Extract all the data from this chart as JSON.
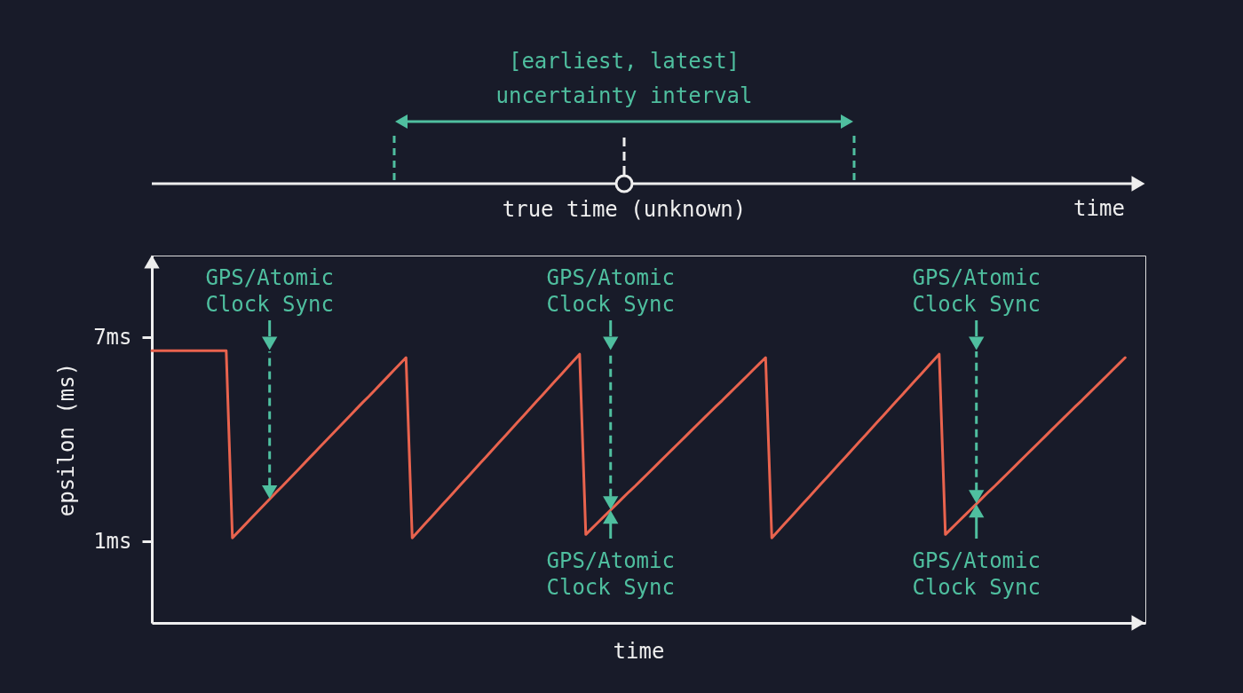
{
  "chart_data": {
    "type": "line",
    "xlabel": "time",
    "ylabel": "epsilon (ms)",
    "ylim": [
      -1.4,
      9.4
    ],
    "yticks": [
      {
        "value": 1,
        "label": "1ms"
      },
      {
        "value": 7,
        "label": "7ms"
      }
    ],
    "tick_labels": "y",
    "line_style": "solid",
    "categories": [
      null,
      null,
      null,
      null,
      null,
      null,
      null,
      null,
      null,
      null,
      null,
      null,
      null,
      null,
      null,
      null,
      null,
      null,
      null,
      null,
      null,
      null,
      null,
      null,
      null,
      null,
      null,
      null,
      null,
      null,
      null,
      null,
      null,
      null,
      null,
      null,
      null,
      null,
      null,
      null,
      null,
      null,
      null,
      null,
      null,
      null,
      null,
      null,
      null,
      null,
      null,
      null,
      null,
      null,
      null,
      null,
      null,
      null,
      null,
      null,
      null,
      null,
      null,
      null,
      null,
      null,
      null,
      null,
      null,
      null,
      null,
      null,
      null,
      null,
      null,
      null,
      null,
      null,
      null,
      null,
      null,
      null,
      null,
      null,
      null,
      null,
      null,
      null,
      null,
      null,
      null,
      null,
      null,
      null,
      null,
      null,
      null,
      null,
      null,
      null,
      null,
      null,
      null,
      null,
      null,
      null,
      null,
      null,
      null,
      null,
      null,
      null,
      null,
      null,
      null,
      null,
      null,
      null,
      null,
      null,
      null,
      null,
      null,
      null,
      null,
      null,
      null,
      null,
      null,
      null,
      null,
      null,
      null,
      null,
      null,
      null,
      null,
      null,
      null,
      null,
      null,
      null,
      null,
      null,
      null,
      null,
      null,
      null,
      null,
      null,
      null,
      null,
      null,
      null,
      null,
      null,
      null,
      null
    ],
    "series": [
      {
        "color": "#e9634e",
        "values": [
          6.6,
          6.6,
          6.6,
          6.6,
          6.6,
          6.6,
          6.6,
          6.6,
          6.6,
          6.6,
          6.6,
          6.6,
          6.6,
          1.1,
          1.29,
          1.48,
          1.67,
          1.86,
          2.05,
          2.24,
          2.43,
          2.61,
          2.8,
          2.99,
          3.18,
          3.37,
          3.56,
          3.75,
          3.94,
          4.13,
          4.32,
          4.51,
          4.7,
          4.89,
          5.08,
          5.26,
          5.45,
          5.64,
          5.83,
          6.02,
          6.21,
          6.4,
          1.1,
          1.3,
          1.5,
          1.7,
          1.9,
          2.1,
          2.3,
          2.5,
          2.7,
          2.9,
          3.1,
          3.3,
          3.5,
          3.7,
          3.9,
          4.1,
          4.3,
          4.5,
          4.7,
          4.9,
          5.1,
          5.3,
          5.5,
          5.7,
          5.9,
          6.1,
          6.3,
          6.5,
          1.2,
          1.38,
          1.56,
          1.74,
          1.92,
          2.1,
          2.28,
          2.46,
          2.63,
          2.81,
          2.99,
          3.17,
          3.35,
          3.53,
          3.71,
          3.89,
          4.07,
          4.25,
          4.43,
          4.61,
          4.79,
          4.97,
          5.14,
          5.32,
          5.5,
          5.68,
          5.86,
          6.04,
          6.22,
          6.4,
          1.1,
          1.3,
          1.5,
          1.7,
          1.9,
          2.1,
          2.3,
          2.5,
          2.7,
          2.9,
          3.1,
          3.3,
          3.5,
          3.7,
          3.9,
          4.1,
          4.3,
          4.5,
          4.7,
          4.9,
          5.1,
          5.3,
          5.5,
          5.7,
          5.9,
          6.1,
          6.3,
          6.5,
          1.2,
          1.38,
          1.56,
          1.74,
          1.92,
          2.1,
          2.28,
          2.46,
          2.63,
          2.81,
          2.99,
          3.17,
          3.35,
          3.53,
          3.71,
          3.89,
          4.07,
          4.25,
          4.43,
          4.61,
          4.79,
          4.97,
          5.14,
          5.32,
          5.5,
          5.68,
          5.86,
          6.04,
          6.22,
          6.4
        ]
      }
    ],
    "annotations": [
      "[earliest, latest]",
      "uncertainty interval",
      "true time (unknown)",
      "time",
      "GPS/Atomic Clock Sync",
      "GPS/Atomic Clock Sync",
      "GPS/Atomic Clock Sync",
      "GPS/Atomic Clock Sync",
      "GPS/Atomic Clock Sync"
    ]
  }
}
